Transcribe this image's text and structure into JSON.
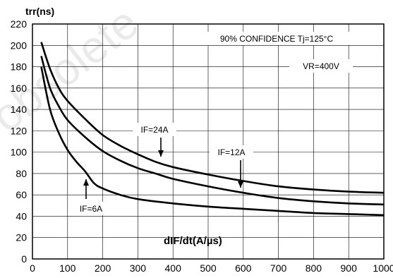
{
  "chart_data": {
    "type": "line",
    "ylabel": "trr(ns)",
    "xlabel": "dIF/dt(A/µs)",
    "xlim": [
      0,
      1000
    ],
    "ylim": [
      0,
      220
    ],
    "x_ticks": [
      "0",
      "100",
      "200",
      "300",
      "400",
      "500",
      "600",
      "700",
      "800",
      "900",
      "1000"
    ],
    "y_ticks": [
      "0",
      "20",
      "40",
      "60",
      "80",
      "100",
      "120",
      "140",
      "160",
      "180",
      "200",
      "220"
    ],
    "grid": true,
    "annotations": {
      "confidence": "90% CONFIDENCE Tj=125°C",
      "voltage": "VR=400V"
    },
    "series": [
      {
        "name": "IF=24A",
        "x": [
          25,
          50,
          75,
          100,
          150,
          200,
          250,
          300,
          350,
          400,
          500,
          600,
          700,
          800,
          900,
          1000
        ],
        "y": [
          203,
          178,
          160,
          148,
          131,
          116,
          106,
          98,
          91,
          86,
          79,
          73,
          68,
          65,
          63,
          62
        ]
      },
      {
        "name": "IF=12A",
        "x": [
          25,
          50,
          75,
          100,
          150,
          200,
          250,
          300,
          350,
          400,
          500,
          600,
          700,
          800,
          900,
          1000
        ],
        "y": [
          190,
          160,
          143,
          130,
          114,
          101,
          92,
          85,
          80,
          75,
          68,
          62,
          57,
          54,
          52,
          51
        ]
      },
      {
        "name": "IF=6A",
        "x": [
          25,
          50,
          75,
          100,
          125,
          150,
          175,
          200,
          250,
          300,
          400,
          500,
          600,
          700,
          800,
          900,
          1000
        ],
        "y": [
          180,
          140,
          118,
          102,
          91,
          82,
          71,
          66,
          60,
          56,
          52,
          49,
          47,
          45,
          43,
          42,
          41
        ]
      }
    ],
    "series_labels": [
      {
        "text": "IF=24A",
        "arrow": "down",
        "at_x": 380,
        "at_y": 86
      },
      {
        "text": "IF=12A",
        "arrow": "down",
        "at_x": 605,
        "at_y": 60
      },
      {
        "text": "IF=6A",
        "arrow": "up",
        "at_x": 165,
        "at_y": 77
      }
    ],
    "watermark": "obsolete"
  }
}
